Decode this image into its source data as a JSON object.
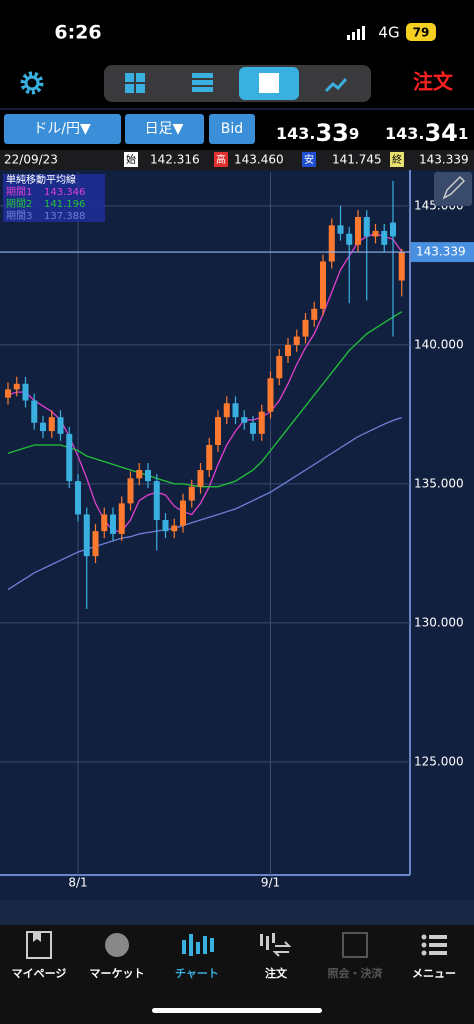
{
  "status": {
    "time": "6:26",
    "network": "4G",
    "battery": "79"
  },
  "toolbar": {
    "order": "注文"
  },
  "controls": {
    "pair": "ドル/円▼",
    "period": "日足▼",
    "side": "Bid"
  },
  "quotes": {
    "bid": {
      "head": "143.",
      "pips": "33",
      "tail": "9"
    },
    "ask": {
      "head": "143.",
      "pips": "34",
      "tail": "1"
    }
  },
  "info": {
    "date": "22/09/23",
    "open_label": "始",
    "open": "142.316",
    "high_label": "高",
    "high": "143.460",
    "low_label": "安",
    "low": "141.745",
    "close_label": "終",
    "close": "143.339"
  },
  "chart_data": {
    "type": "candlestick",
    "legend_title": "単純移動平均線",
    "up_color": "#ff7a2f",
    "down_color": "#3ab0e0",
    "categories": [
      null,
      null,
      null,
      null,
      null,
      null,
      null,
      null,
      "8/1",
      null,
      null,
      null,
      null,
      null,
      null,
      null,
      null,
      null,
      null,
      null,
      null,
      null,
      null,
      null,
      null,
      null,
      null,
      null,
      null,
      null,
      "9/1",
      null,
      null,
      null,
      null,
      null,
      null,
      null,
      null,
      null,
      null,
      null,
      null,
      null,
      null,
      null
    ],
    "open": [
      138.1,
      138.4,
      138.6,
      138.0,
      137.2,
      136.9,
      137.4,
      136.8,
      135.1,
      133.9,
      132.4,
      133.3,
      133.9,
      133.2,
      134.3,
      135.2,
      135.5,
      135.1,
      133.7,
      133.3,
      133.5,
      134.4,
      134.9,
      135.5,
      136.4,
      137.4,
      137.9,
      137.4,
      137.2,
      136.8,
      137.6,
      138.8,
      139.6,
      140.0,
      140.3,
      140.9,
      141.3,
      143.0,
      144.3,
      144.0,
      143.6,
      144.6,
      143.9,
      144.1,
      144.4,
      142.316
    ],
    "high": [
      138.65,
      138.85,
      138.85,
      138.25,
      137.45,
      137.65,
      137.65,
      137.05,
      135.35,
      134.15,
      133.55,
      134.15,
      134.15,
      134.55,
      135.45,
      135.75,
      135.75,
      135.35,
      133.95,
      133.75,
      134.65,
      135.15,
      135.75,
      136.65,
      137.65,
      138.15,
      138.15,
      137.65,
      137.45,
      137.85,
      139.05,
      139.85,
      140.25,
      140.55,
      141.15,
      141.55,
      143.25,
      144.55,
      145.0,
      144.25,
      144.85,
      144.85,
      144.35,
      144.35,
      145.9,
      143.46
    ],
    "low": [
      137.85,
      138.15,
      137.75,
      136.95,
      136.65,
      136.65,
      136.55,
      134.85,
      133.65,
      130.5,
      132.15,
      133.05,
      132.95,
      132.95,
      134.05,
      134.95,
      134.85,
      132.6,
      133.05,
      133.05,
      133.25,
      134.15,
      134.65,
      135.25,
      136.15,
      137.15,
      137.15,
      136.95,
      136.55,
      136.55,
      137.35,
      138.55,
      139.35,
      139.75,
      140.05,
      140.65,
      141.05,
      142.75,
      143.75,
      141.5,
      143.35,
      141.6,
      143.65,
      143.35,
      140.3,
      141.745
    ],
    "close": [
      138.4,
      138.6,
      138.0,
      137.2,
      136.9,
      137.4,
      136.8,
      135.1,
      133.9,
      132.4,
      133.3,
      133.9,
      133.2,
      134.3,
      135.2,
      135.5,
      135.1,
      133.7,
      133.3,
      133.5,
      134.4,
      134.9,
      135.5,
      136.4,
      137.4,
      137.9,
      137.4,
      137.2,
      136.8,
      137.6,
      138.8,
      139.6,
      140.0,
      140.3,
      140.9,
      141.3,
      143.0,
      144.3,
      144.0,
      143.6,
      144.6,
      143.9,
      144.1,
      143.6,
      143.9,
      143.339
    ],
    "series": [
      {
        "name": "期間1",
        "color": "#e040d0",
        "values": [
          138.2,
          138.3,
          138.3,
          138.0,
          137.8,
          137.6,
          137.3,
          136.7,
          136.0,
          135.2,
          134.3,
          133.7,
          133.3,
          133.3,
          133.7,
          134.4,
          134.6,
          134.7,
          134.6,
          134.2,
          134.0,
          133.9,
          134.3,
          134.9,
          135.7,
          136.4,
          136.9,
          137.3,
          137.3,
          137.4,
          137.6,
          138.0,
          138.6,
          139.3,
          139.9,
          140.4,
          141.1,
          141.9,
          142.7,
          143.2,
          143.7,
          143.9,
          144.0,
          143.9,
          143.8,
          143.346
        ]
      },
      {
        "name": "期間2",
        "color": "#22c33a",
        "values": [
          136.1,
          136.2,
          136.3,
          136.4,
          136.4,
          136.4,
          136.4,
          136.3,
          136.2,
          136.0,
          135.9,
          135.8,
          135.7,
          135.6,
          135.5,
          135.4,
          135.3,
          135.2,
          135.1,
          135.0,
          135.0,
          134.95,
          134.9,
          134.9,
          134.9,
          135.0,
          135.1,
          135.3,
          135.5,
          135.8,
          136.2,
          136.6,
          137.0,
          137.4,
          137.8,
          138.2,
          138.6,
          139.0,
          139.4,
          139.8,
          140.1,
          140.4,
          140.6,
          140.8,
          141.0,
          141.196
        ]
      },
      {
        "name": "期間3",
        "color": "#6f7fd8",
        "values": [
          131.2,
          131.4,
          131.6,
          131.8,
          131.95,
          132.1,
          132.25,
          132.4,
          132.55,
          132.65,
          132.75,
          132.85,
          132.95,
          133.05,
          133.1,
          133.2,
          133.25,
          133.3,
          133.35,
          133.4,
          133.5,
          133.6,
          133.7,
          133.8,
          133.9,
          134.0,
          134.1,
          134.25,
          134.4,
          134.55,
          134.7,
          134.9,
          135.1,
          135.3,
          135.5,
          135.7,
          135.9,
          136.1,
          136.3,
          136.5,
          136.7,
          136.85,
          137.0,
          137.15,
          137.28,
          137.388
        ]
      }
    ],
    "ylim": [
      120.93,
      146.22
    ],
    "yticks": [
      {
        "value": 125,
        "label": "125.000"
      },
      {
        "value": 130,
        "label": "130.000"
      },
      {
        "value": 135,
        "label": "135.000"
      },
      {
        "value": 140,
        "label": "140.000"
      },
      {
        "value": 145,
        "label": "145.000"
      }
    ],
    "grid": true
  },
  "tabs": [
    "マイページ",
    "マーケット",
    "チャート",
    "注文",
    "照会・決済",
    "メニュー"
  ]
}
